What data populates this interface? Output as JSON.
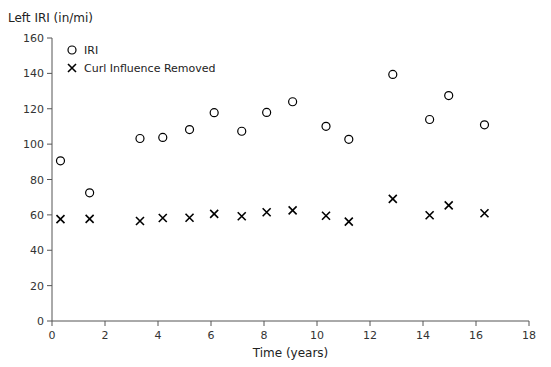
{
  "chart_data": {
    "type": "scatter",
    "xlabel": "Time (years)",
    "ylabel": "Left IRI (in/mi)",
    "x": [
      0.32,
      1.42,
      3.32,
      4.18,
      5.19,
      6.12,
      7.16,
      8.1,
      9.08,
      10.34,
      11.2,
      12.86,
      14.25,
      14.97,
      16.32
    ],
    "series": [
      {
        "name": "IRI",
        "color": "#000000",
        "marker": "circle",
        "values": [
          90.54,
          72.48,
          103.17,
          103.79,
          108.25,
          117.77,
          107.27,
          117.94,
          123.96,
          110.06,
          102.72,
          139.4,
          113.92,
          127.43,
          110.92
        ]
      },
      {
        "name": "Curl Influence Removed",
        "color": "#000000",
        "marker": "x",
        "values": [
          57.58,
          57.76,
          56.55,
          58.2,
          58.38,
          60.6,
          59.23,
          61.48,
          62.52,
          59.53,
          56.21,
          69.08,
          59.8,
          65.34,
          60.95
        ]
      }
    ],
    "xlim": [
      0,
      18
    ],
    "ylim": [
      0,
      160
    ],
    "xticks": [
      0,
      2,
      4,
      6,
      8,
      10,
      12,
      14,
      16,
      18
    ],
    "yticks": [
      0,
      20,
      40,
      60,
      80,
      100,
      120,
      140,
      160
    ],
    "grid": false,
    "legend": "upper left"
  }
}
